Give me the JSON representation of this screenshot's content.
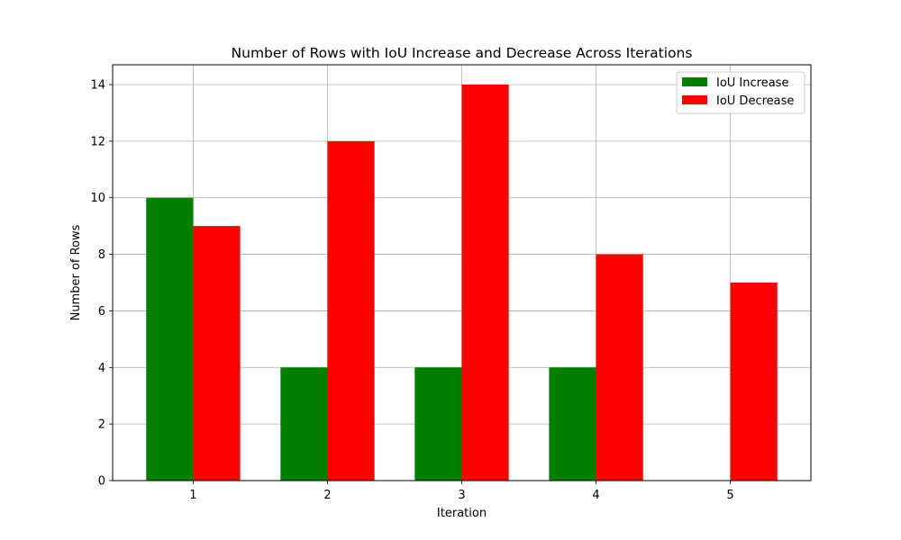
{
  "chart_data": {
    "type": "bar",
    "title": "Number of Rows with IoU Increase and Decrease Across Iterations",
    "xlabel": "Iteration",
    "ylabel": "Number of Rows",
    "categories": [
      "1",
      "2",
      "3",
      "4",
      "5"
    ],
    "series": [
      {
        "name": "IoU Increase",
        "color": "#008000",
        "values": [
          10,
          4,
          4,
          4,
          0
        ]
      },
      {
        "name": "IoU Decrease",
        "color": "#ff0000",
        "values": [
          9,
          12,
          14,
          8,
          7
        ]
      }
    ],
    "ylim": [
      0,
      14.7
    ],
    "yticks": [
      0,
      2,
      4,
      6,
      8,
      10,
      12,
      14
    ],
    "grid": true,
    "legend_position": "top-right"
  }
}
